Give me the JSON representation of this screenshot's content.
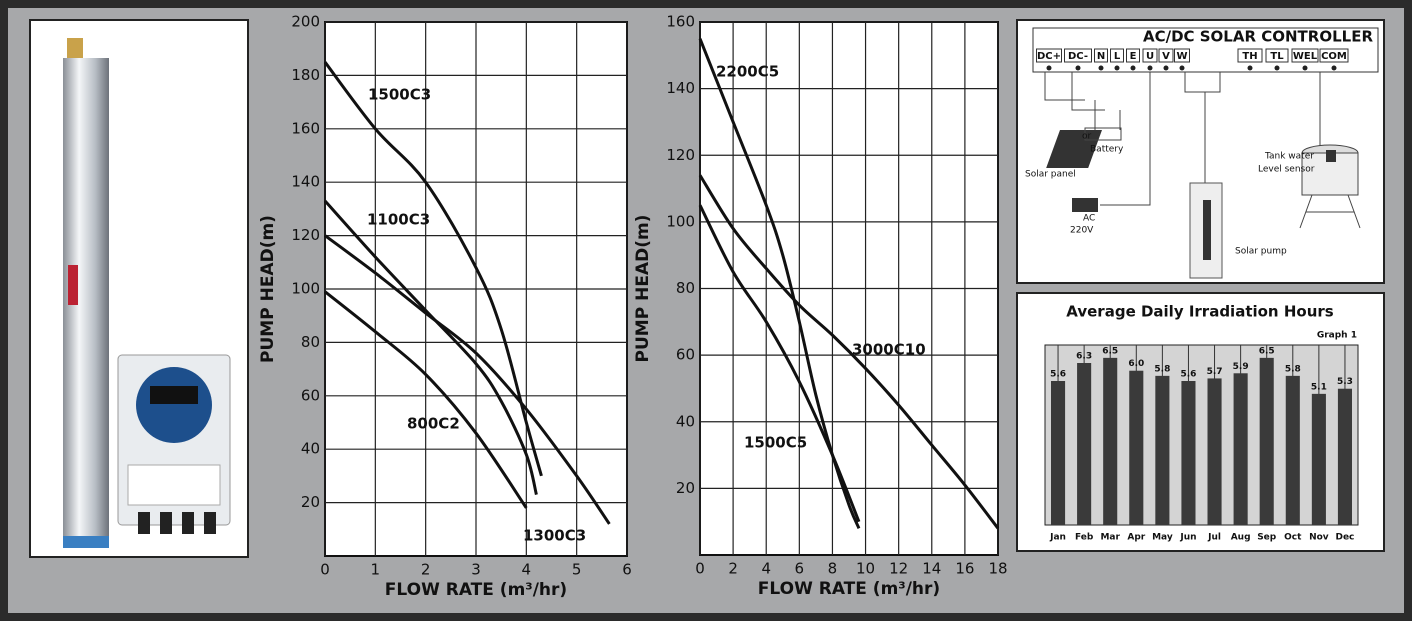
{
  "chart_data": [
    {
      "type": "line",
      "xlabel": "FLOW RATE (m³/hr)",
      "ylabel": "PUMP HEAD(m)",
      "xlim": [
        0,
        6
      ],
      "xticks": [
        0,
        1,
        2,
        3,
        4,
        5,
        6
      ],
      "ylim": [
        0,
        200
      ],
      "yticks": [
        20,
        40,
        60,
        80,
        100,
        120,
        140,
        160,
        180,
        200
      ],
      "grid": true,
      "series": [
        {
          "name": "1500C3",
          "color": "#111111",
          "x": [
            0,
            1,
            2,
            3,
            3.5,
            4,
            4.3
          ],
          "values": [
            185,
            160,
            140,
            108,
            85,
            50,
            30
          ]
        },
        {
          "name": "1100C3",
          "color": "#111111",
          "x": [
            0,
            1,
            2,
            3,
            3.5,
            4,
            4.2
          ],
          "values": [
            133,
            112,
            92,
            72,
            58,
            38,
            23
          ]
        },
        {
          "name": "800C2",
          "color": "#111111",
          "x": [
            0,
            1,
            2,
            3,
            4
          ],
          "values": [
            99,
            84,
            68,
            46,
            18
          ]
        },
        {
          "name": "1300C3",
          "color": "#111111",
          "x": [
            0,
            1,
            2,
            3,
            4,
            5,
            5.65
          ],
          "values": [
            120,
            106,
            91,
            76,
            55,
            30,
            12
          ]
        }
      ]
    },
    {
      "type": "line",
      "xlabel": "FLOW RATE (m³/hr)",
      "ylabel": "PUMP HEAD(m)",
      "xlim": [
        0,
        18
      ],
      "xticks": [
        0,
        2,
        4,
        6,
        8,
        10,
        12,
        14,
        16,
        18
      ],
      "ylim": [
        0,
        160
      ],
      "yticks": [
        20,
        40,
        60,
        80,
        100,
        120,
        140,
        160
      ],
      "grid": true,
      "series": [
        {
          "name": "2200C5",
          "color": "#111111",
          "x": [
            0,
            2,
            4,
            5,
            6,
            7,
            8,
            9,
            9.6
          ],
          "values": [
            155,
            130,
            105,
            90,
            70,
            48,
            30,
            15,
            8
          ]
        },
        {
          "name": "3000C10",
          "color": "#111111",
          "x": [
            0,
            2,
            4,
            6,
            8,
            10,
            12,
            14,
            16,
            18
          ],
          "values": [
            114,
            98,
            86,
            75,
            66,
            56,
            45,
            33,
            21,
            8
          ]
        },
        {
          "name": "1500C5",
          "color": "#111111",
          "x": [
            0,
            2,
            4,
            6,
            8,
            9.6
          ],
          "values": [
            105,
            85,
            70,
            52,
            30,
            10
          ]
        }
      ]
    },
    {
      "type": "bar",
      "title": "Average Daily Irradiation Hours",
      "subtitle": "Graph 1",
      "color": "#3a3a3a",
      "grid": true,
      "ylim": [
        0,
        7
      ],
      "categories": [
        "Jan",
        "Feb",
        "Mar",
        "Apr",
        "May",
        "Jun",
        "Jul",
        "Aug",
        "Sep",
        "Oct",
        "Nov",
        "Dec"
      ],
      "values": [
        5.6,
        6.3,
        6.5,
        6.0,
        5.8,
        5.6,
        5.7,
        5.9,
        6.5,
        5.8,
        5.1,
        5.3
      ],
      "value_labels": [
        "5.6",
        "6.3",
        "6.5",
        "6.0",
        "5.8",
        "5.6",
        "5.7",
        "5.9",
        "6.5",
        "5.8",
        "5.1",
        "5.3"
      ]
    }
  ],
  "diagram": {
    "title": "AC/DC SOLAR CONTROLLER",
    "terminals": [
      "DC+",
      "DC-",
      "N",
      "L",
      "E",
      "U",
      "V",
      "W",
      "TH",
      "TL",
      "WEL",
      "COM"
    ],
    "labels": [
      "or",
      "Battery",
      "Solar panel",
      "AC",
      "220V",
      "Tank water",
      "Level sensor",
      "Solar pump"
    ]
  }
}
